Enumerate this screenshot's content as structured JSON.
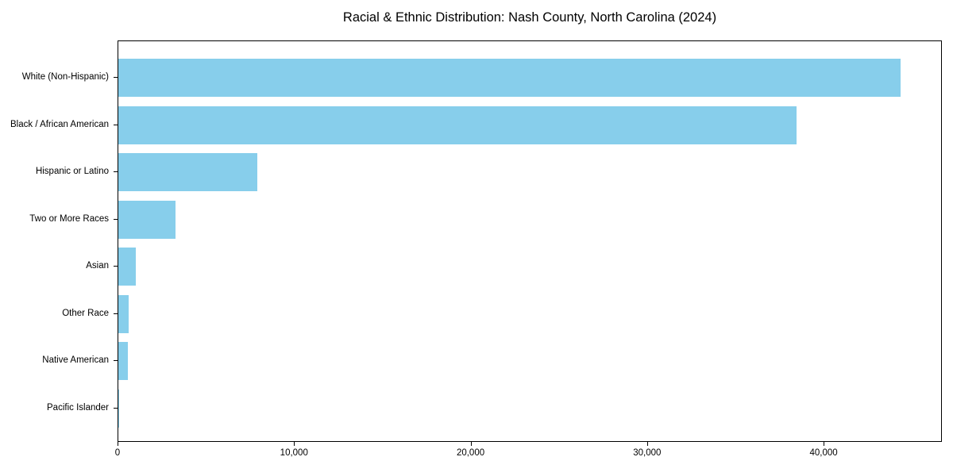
{
  "chart_data": {
    "type": "bar",
    "orientation": "horizontal",
    "title": "Racial & Ethnic Distribution: Nash County, North Carolina (2024)",
    "categories": [
      "White (Non-Hispanic)",
      "Black / African American",
      "Hispanic or Latino",
      "Two or More Races",
      "Asian",
      "Other Race",
      "Native American",
      "Pacific Islander"
    ],
    "values": [
      44400,
      38500,
      7900,
      3250,
      1000,
      600,
      560,
      40
    ],
    "xlabel": "",
    "ylabel": "",
    "xlim": [
      0,
      46700
    ],
    "x_ticks": [
      0,
      10000,
      20000,
      30000,
      40000
    ],
    "x_tick_labels": [
      "0",
      "10,000",
      "20,000",
      "30,000",
      "40,000"
    ],
    "bar_color": "#87CEEB",
    "background_color": "#ffffff",
    "frame_color": "#000000",
    "grid": false,
    "legend": null
  }
}
